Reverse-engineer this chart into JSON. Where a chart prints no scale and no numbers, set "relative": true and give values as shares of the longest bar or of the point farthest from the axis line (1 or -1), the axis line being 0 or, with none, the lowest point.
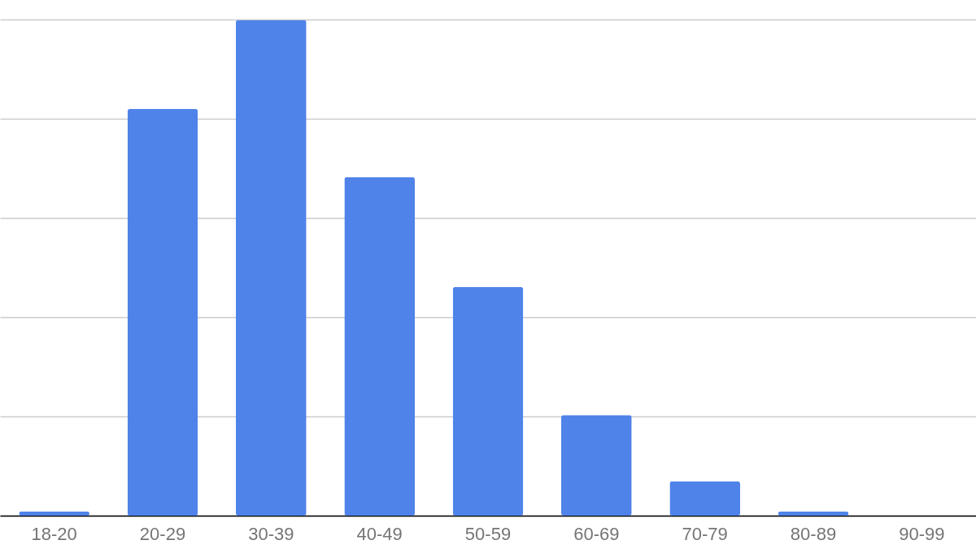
{
  "chart_data": {
    "type": "bar",
    "relative": true,
    "grid": "y",
    "categories": [
      "18-20",
      "20-29",
      "30-39",
      "40-49",
      "50-59",
      "60-69",
      "70-79",
      "80-89",
      "90-99"
    ],
    "values": [
      0.008,
      0.82,
      1,
      0.683,
      0.461,
      0.203,
      0.069,
      0.008,
      0
    ],
    "color": "#5083ea"
  }
}
